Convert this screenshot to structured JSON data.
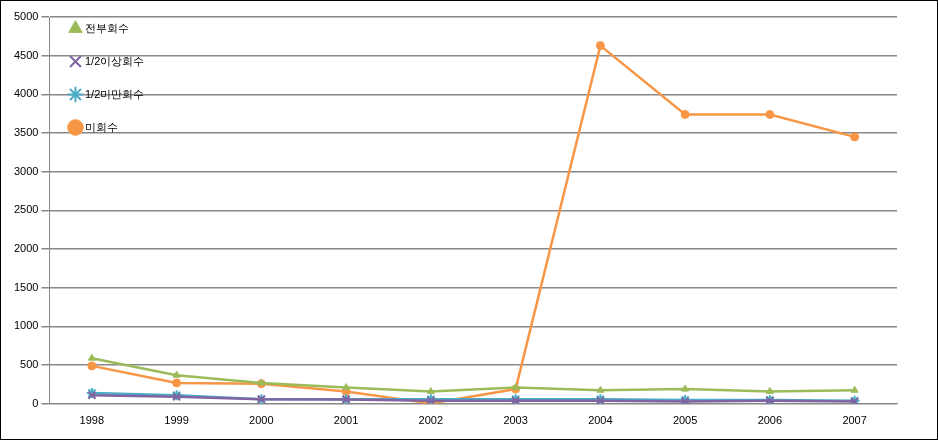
{
  "chart_data": {
    "type": "line",
    "categories": [
      "1998",
      "1999",
      "2000",
      "2001",
      "2002",
      "2003",
      "2004",
      "2005",
      "2006",
      "2007"
    ],
    "series": [
      {
        "name": "전부회수",
        "color": "#9bbb59",
        "marker": "triangle",
        "values": [
          590,
          370,
          270,
          210,
          160,
          210,
          175,
          190,
          160,
          175
        ]
      },
      {
        "name": "1/2이상회수",
        "color": "#8064a2",
        "marker": "cross",
        "values": [
          110,
          90,
          60,
          55,
          40,
          40,
          40,
          30,
          40,
          30
        ]
      },
      {
        "name": "1/2미만회수",
        "color": "#4bacc6",
        "marker": "star",
        "values": [
          140,
          110,
          60,
          60,
          60,
          60,
          60,
          50,
          50,
          40
        ]
      },
      {
        "name": "미회수",
        "color": "#f79646",
        "marker": "circle",
        "values": [
          490,
          270,
          260,
          160,
          5,
          190,
          4630,
          3740,
          3740,
          3450
        ]
      }
    ],
    "ylim": [
      0,
      5000
    ],
    "yticks": [
      0,
      500,
      1000,
      1500,
      2000,
      2500,
      3000,
      3500,
      4000,
      4500,
      5000
    ],
    "grid": true,
    "legend": "upper left"
  }
}
